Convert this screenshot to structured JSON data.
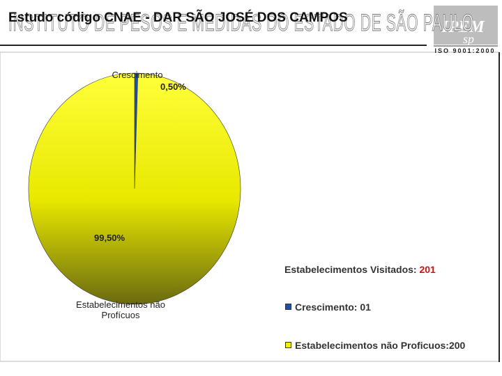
{
  "header": {
    "title": "Estudo código CNAE - DAR SÃO JOSÉ DOS CAMPOS",
    "institute": "INSTITUTO DE PESOS E MEDIDAS DO ESTADO DE SÃO PAULO",
    "logo": "IPEM",
    "logo_sub": "sp",
    "certification": "ISO 9001:2000"
  },
  "chart_data": {
    "type": "pie",
    "categories": [
      "Crescimento",
      "Estabelecimentos não Profícuos"
    ],
    "values": [
      0.5,
      99.5
    ],
    "value_labels": [
      "0,50%",
      "99,50%"
    ],
    "colors": [
      "#1f4fa8",
      "#f2f200"
    ]
  },
  "summary": {
    "visited_label": "Estabelecimentos Visitados:",
    "visited_value": "201",
    "items": [
      "Crescimento: 01",
      "Estabelecimentos não Proficuos:200"
    ]
  }
}
